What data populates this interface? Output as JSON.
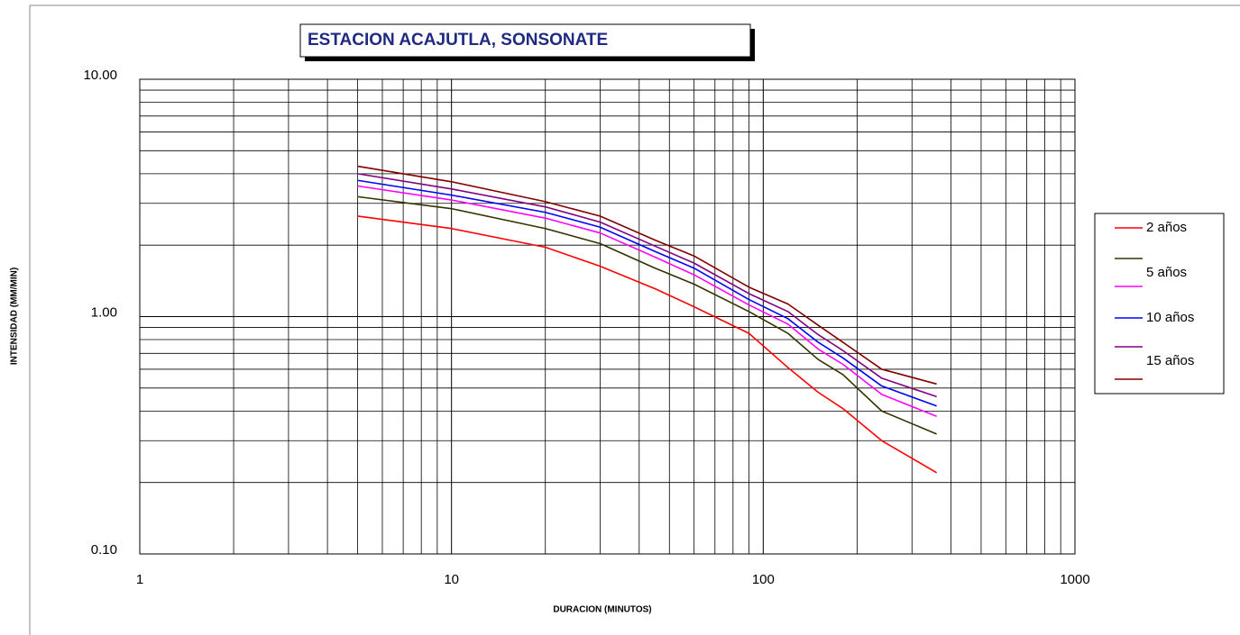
{
  "chart_data": {
    "type": "line",
    "title": "ESTACION ACAJUTLA, SONSONATE",
    "x_label": "DURACION (MINUTOS)",
    "y_label": "INTENSIDAD (MM/MIN)",
    "x": [
      5,
      10,
      20,
      30,
      45,
      60,
      90,
      120,
      150,
      180,
      240,
      360
    ],
    "series": [
      {
        "name": "2 años",
        "color": "#ff0000",
        "values": [
          2.65,
          2.35,
          1.96,
          1.63,
          1.31,
          1.1,
          0.85,
          0.61,
          0.48,
          0.41,
          0.3,
          0.22
        ]
      },
      {
        "name": null,
        "color": "#333300",
        "values": [
          3.2,
          2.85,
          2.35,
          2.03,
          1.6,
          1.37,
          1.05,
          0.85,
          0.66,
          0.57,
          0.4,
          0.32
        ]
      },
      {
        "name": "5 años",
        "color": "#ff00ff",
        "values": [
          3.55,
          3.1,
          2.6,
          2.25,
          1.78,
          1.5,
          1.12,
          0.93,
          0.73,
          0.63,
          0.47,
          0.38
        ]
      },
      {
        "name": "10 años",
        "color": "#0000ff",
        "values": [
          3.75,
          3.25,
          2.75,
          2.38,
          1.88,
          1.6,
          1.18,
          0.98,
          0.78,
          0.67,
          0.51,
          0.42
        ]
      },
      {
        "name": null,
        "color": "#800080",
        "values": [
          4.0,
          3.45,
          2.9,
          2.5,
          1.98,
          1.68,
          1.25,
          1.05,
          0.84,
          0.72,
          0.55,
          0.46
        ]
      },
      {
        "name": "15 años",
        "color": "#800000",
        "values": [
          4.3,
          3.7,
          3.05,
          2.65,
          2.1,
          1.8,
          1.33,
          1.13,
          0.92,
          0.78,
          0.6,
          0.52
        ]
      }
    ],
    "xscale": "log",
    "yscale": "log",
    "xlim": [
      1,
      1000
    ],
    "ylim": [
      0.1,
      10
    ],
    "xticks": [
      1,
      10,
      100,
      1000
    ],
    "yticks": [
      {
        "value": 0.1,
        "label": "0.10"
      },
      {
        "value": 1,
        "label": "1.00"
      },
      {
        "value": 10,
        "label": "10.00"
      }
    ],
    "grid": true,
    "legend": "right"
  }
}
